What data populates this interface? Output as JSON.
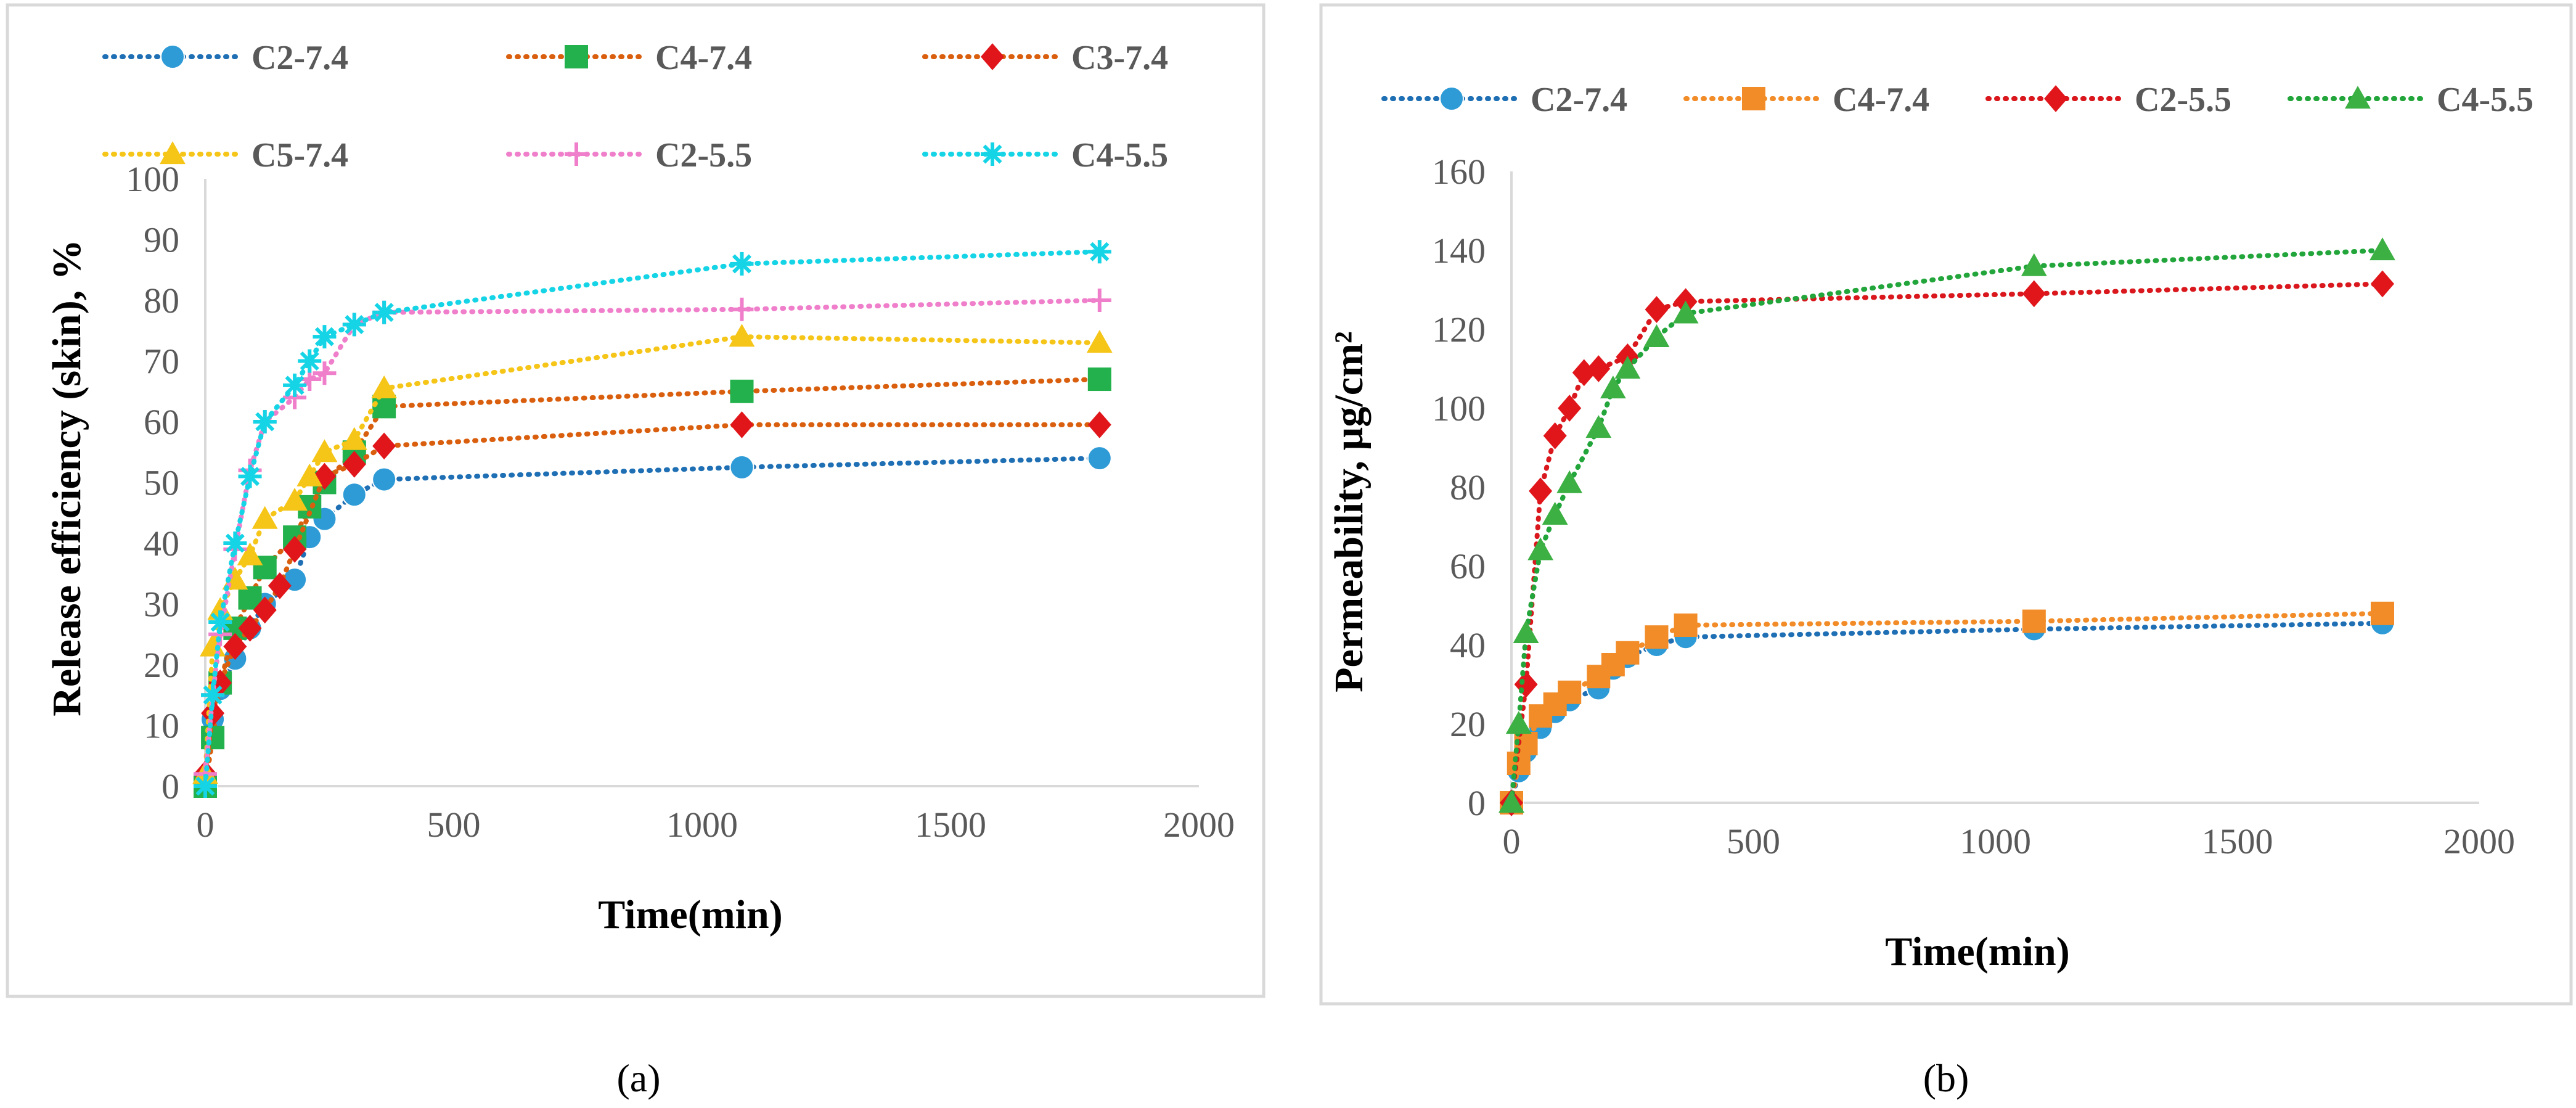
{
  "chart_data": [
    {
      "type": "line",
      "panel_label": "(a)",
      "xlabel": "Time(min)",
      "ylabel": "Release efficiency (skin), %",
      "xlim": [
        0,
        2000
      ],
      "ylim": [
        0,
        100
      ],
      "xticks": [
        "0",
        "500",
        "1000",
        "1500",
        "2000"
      ],
      "yticks": [
        "0",
        "10",
        "20",
        "30",
        "40",
        "50",
        "60",
        "70",
        "80",
        "90",
        "100"
      ],
      "grid": false,
      "legend": "top",
      "series": [
        {
          "name": "C2-7.4",
          "color": "#1f6fb4",
          "marker": "circle",
          "markerColor": "#2e9bd6",
          "x": [
            0,
            15,
            30,
            60,
            90,
            120,
            180,
            210,
            240,
            300,
            360,
            1080,
            1800
          ],
          "y": [
            0,
            11,
            16,
            21,
            26,
            30,
            34,
            41,
            44,
            48,
            50.5,
            52.5,
            54
          ]
        },
        {
          "name": "C4-7.4",
          "color": "#d95f0e",
          "marker": "square",
          "markerColor": "#22b14c",
          "x": [
            0,
            15,
            30,
            60,
            90,
            120,
            180,
            210,
            240,
            300,
            360,
            1080,
            1800
          ],
          "y": [
            0,
            8,
            17,
            26,
            31,
            36,
            41,
            46,
            50,
            55,
            62.5,
            65,
            67
          ]
        },
        {
          "name": "C3-7.4",
          "color": "#d95f0e",
          "marker": "diamond",
          "markerColor": "#e0161b",
          "x": [
            0,
            15,
            30,
            60,
            90,
            120,
            150,
            180,
            240,
            300,
            360,
            1080,
            1800
          ],
          "y": [
            2,
            12,
            17,
            23,
            26,
            29,
            33,
            39,
            51,
            53,
            56,
            59.5,
            59.5
          ]
        },
        {
          "name": "C5-7.4",
          "color": "#f5c518",
          "marker": "triangle",
          "markerColor": "#f5c518",
          "x": [
            0,
            15,
            30,
            60,
            90,
            120,
            180,
            210,
            240,
            300,
            360,
            1080,
            1800
          ],
          "y": [
            2,
            23,
            29,
            34,
            38,
            44,
            47,
            51,
            55,
            57,
            65.5,
            74,
            73
          ]
        },
        {
          "name": "C2-5.5",
          "color": "#f07fcb",
          "marker": "plus",
          "markerColor": "#f07fcb",
          "x": [
            0,
            15,
            30,
            60,
            90,
            120,
            180,
            210,
            240,
            300,
            360,
            1080,
            1800
          ],
          "y": [
            2,
            15,
            25,
            39,
            52,
            60,
            64,
            67,
            68,
            76,
            78,
            78.5,
            80
          ]
        },
        {
          "name": "C4-5.5",
          "color": "#14d4e6",
          "marker": "asterisk",
          "markerColor": "#14d4e6",
          "x": [
            0,
            15,
            30,
            60,
            90,
            120,
            180,
            210,
            240,
            300,
            360,
            1080,
            1800
          ],
          "y": [
            0,
            15,
            27,
            40,
            51,
            60,
            66,
            70,
            74,
            76,
            78,
            86,
            88
          ]
        }
      ]
    },
    {
      "type": "line",
      "panel_label": "(b)",
      "xlabel": "Time(min)",
      "ylabel": "Permeability, µg/cm²",
      "xlim": [
        0,
        2000
      ],
      "ylim": [
        0,
        160
      ],
      "xticks": [
        "0",
        "500",
        "1000",
        "1500",
        "2000"
      ],
      "yticks": [
        "0",
        "20",
        "40",
        "60",
        "80",
        "100",
        "120",
        "140",
        "160"
      ],
      "grid": false,
      "legend": "top",
      "series": [
        {
          "name": "C2-7.4",
          "color": "#1f6fb4",
          "marker": "circle",
          "markerColor": "#2e9bd6",
          "x": [
            0,
            15,
            30,
            60,
            90,
            120,
            180,
            210,
            240,
            300,
            360,
            1080,
            1800
          ],
          "y": [
            0,
            8,
            13,
            19,
            23,
            26,
            29,
            34,
            37,
            40,
            42,
            44,
            45.5
          ]
        },
        {
          "name": "C4-7.4",
          "color": "#f28c28",
          "marker": "square",
          "markerColor": "#f28c28",
          "x": [
            0,
            15,
            30,
            60,
            90,
            120,
            180,
            210,
            240,
            300,
            360,
            1080,
            1800
          ],
          "y": [
            0,
            10,
            15,
            22,
            25,
            28,
            32,
            35,
            38,
            42,
            45,
            46,
            48
          ]
        },
        {
          "name": "C2-5.5",
          "color": "#d9171c",
          "marker": "diamond",
          "markerColor": "#e0161b",
          "x": [
            0,
            30,
            60,
            90,
            120,
            150,
            180,
            240,
            300,
            360,
            1080,
            1800
          ],
          "y": [
            0,
            30,
            79,
            93,
            100,
            109,
            110,
            113,
            125,
            127,
            129,
            131.5
          ]
        },
        {
          "name": "C4-5.5",
          "color": "#22a53a",
          "marker": "triangle",
          "markerColor": "#3cb043",
          "x": [
            0,
            15,
            30,
            60,
            90,
            120,
            180,
            210,
            240,
            300,
            360,
            1080,
            1800
          ],
          "y": [
            0,
            20,
            43,
            64,
            73,
            81,
            95,
            105,
            110,
            118,
            124,
            136,
            140
          ]
        }
      ]
    }
  ]
}
